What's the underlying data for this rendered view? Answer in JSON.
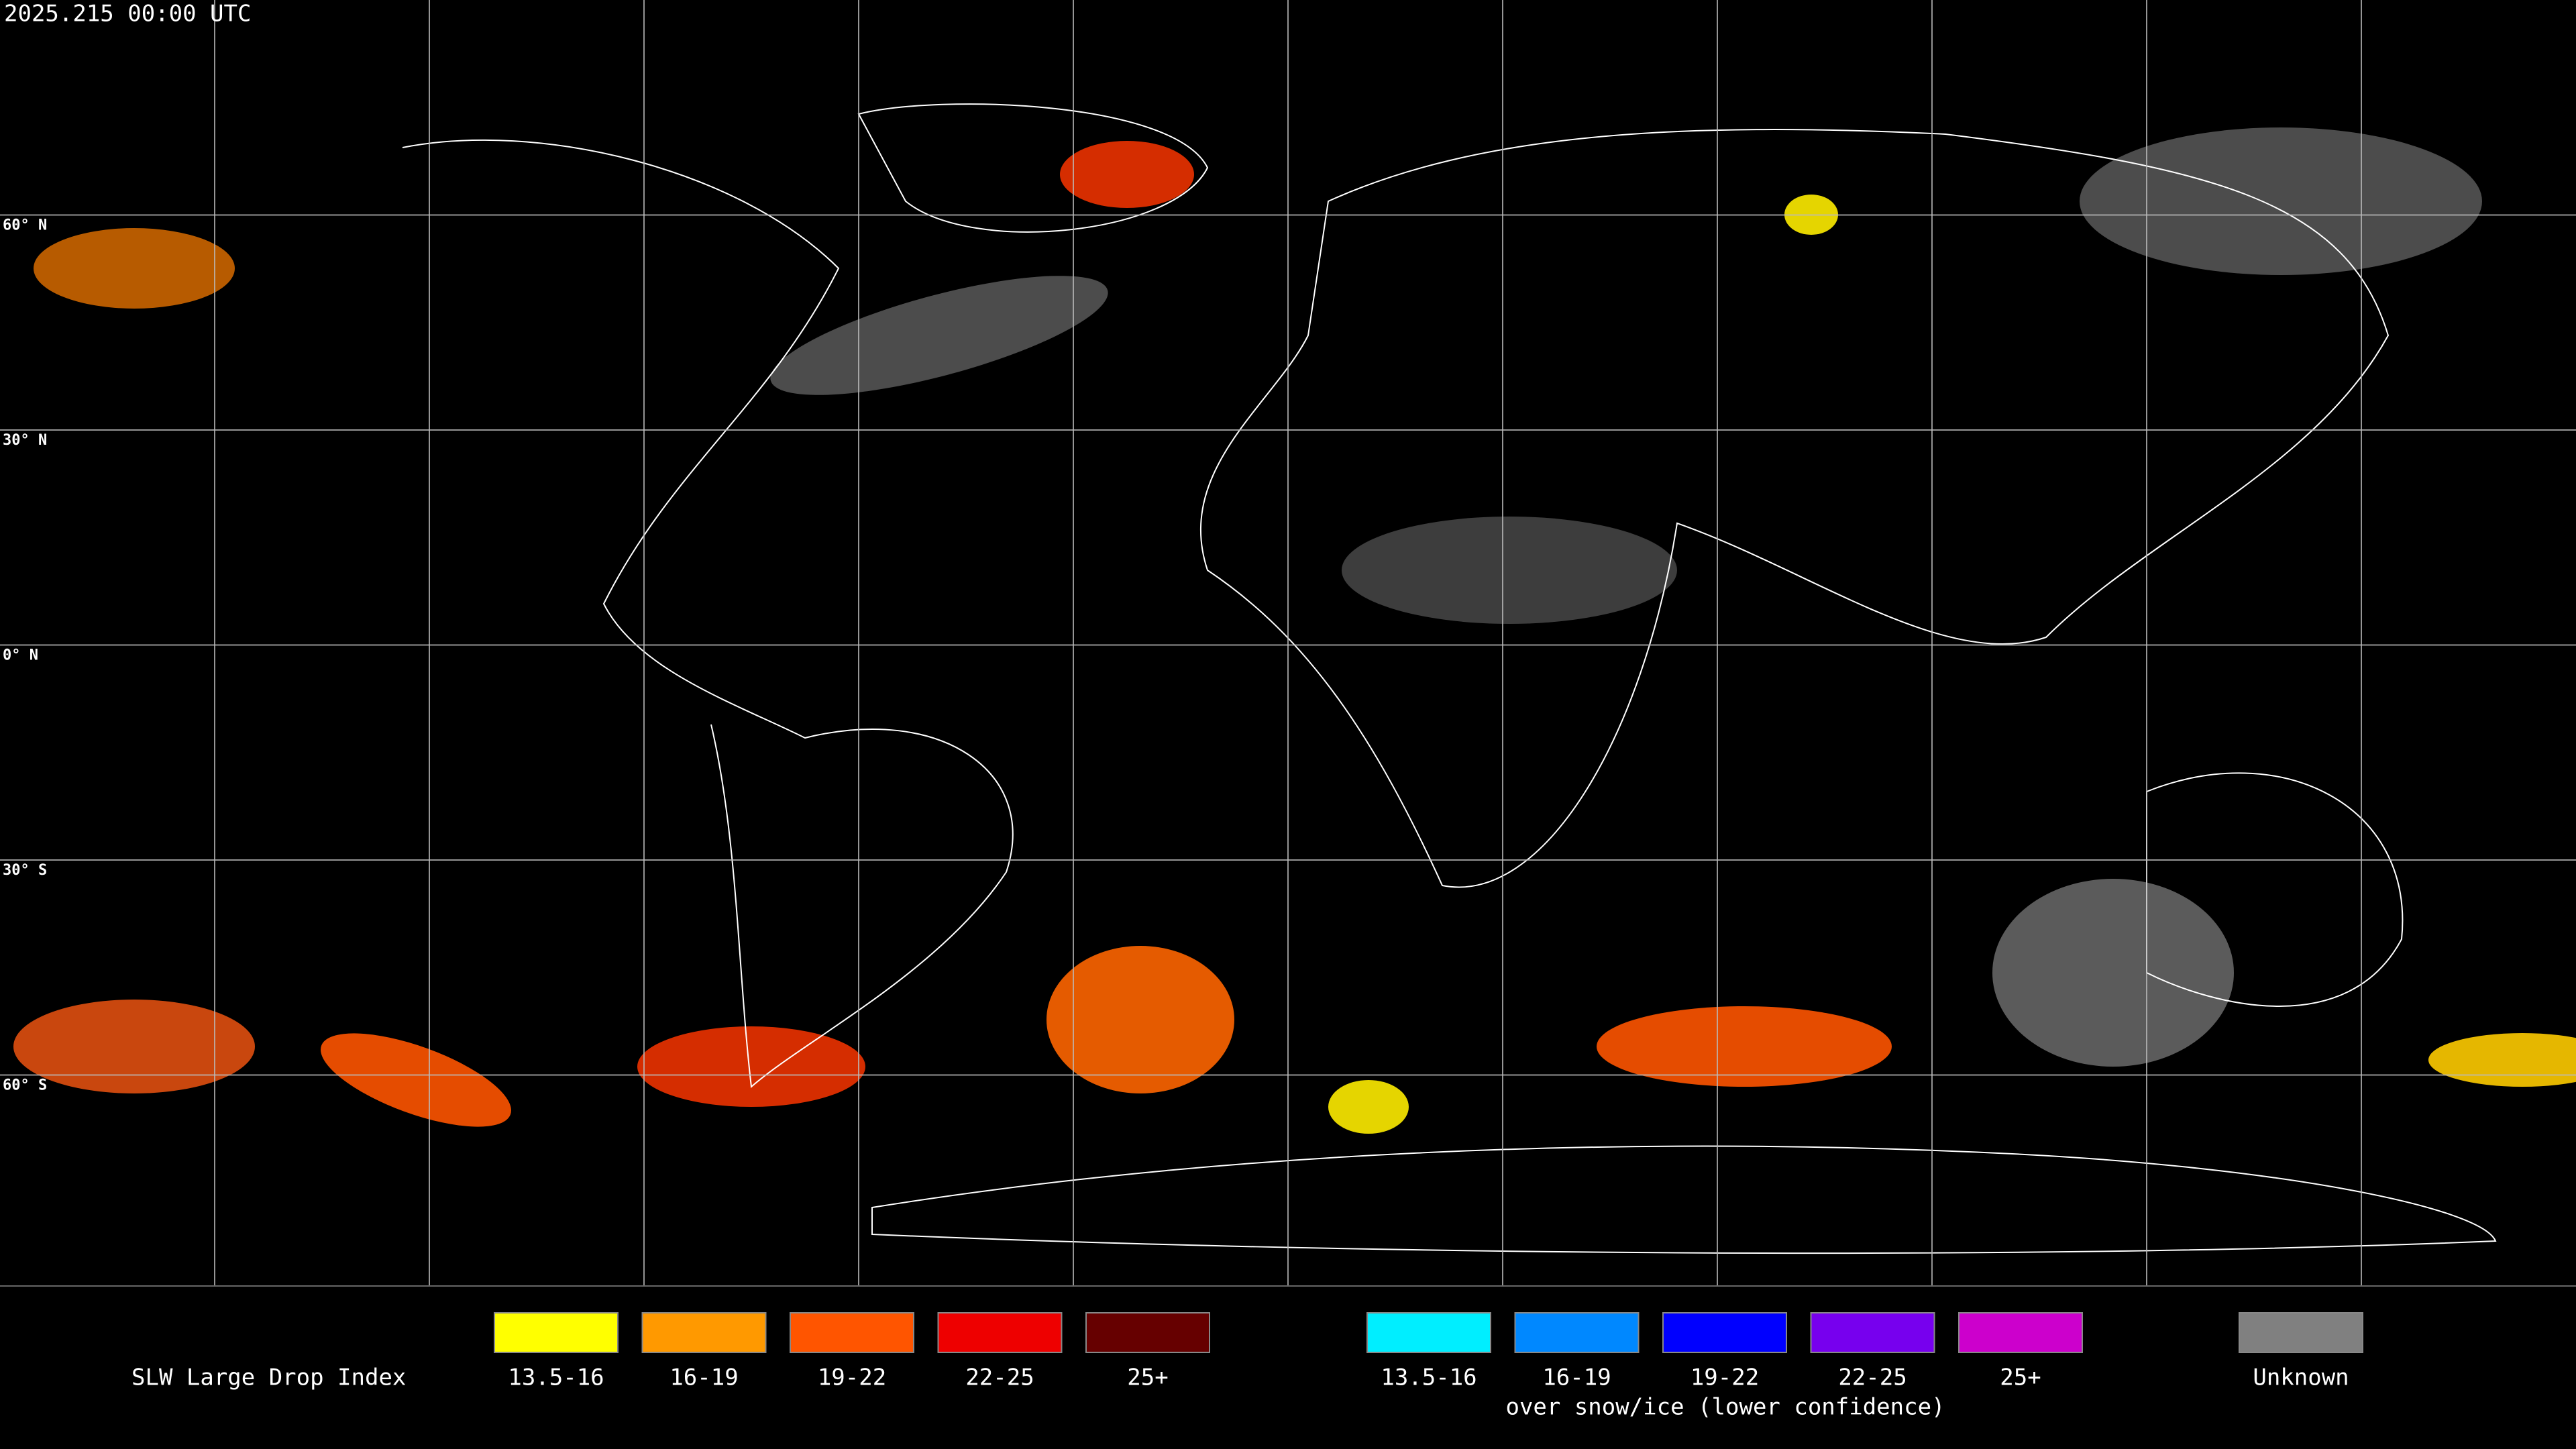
{
  "header": {
    "title": "2025.215 00:00 UTC"
  },
  "map": {
    "latitude_labels": [
      "60° N",
      "30° N",
      "0° N",
      "30° S",
      "60° S"
    ]
  },
  "legend": {
    "title": "SLW Large Drop Index",
    "items": [
      {
        "label": "13.5-16",
        "color": "#ffff00"
      },
      {
        "label": "16-19",
        "color": "#ff9900"
      },
      {
        "label": "19-22",
        "color": "#ff5500"
      },
      {
        "label": "22-25",
        "color": "#ee0000"
      },
      {
        "label": "25+",
        "color": "#660000"
      }
    ],
    "snow_items": [
      {
        "label": "13.5-16",
        "color": "#00eeff"
      },
      {
        "label": "16-19",
        "color": "#0088ff"
      },
      {
        "label": "19-22",
        "color": "#0000ff"
      },
      {
        "label": "22-25",
        "color": "#7700ee"
      },
      {
        "label": "25+",
        "color": "#cc00cc"
      }
    ],
    "snow_caption": "over snow/ice (lower confidence)",
    "unknown": {
      "label": "Unknown",
      "color": "#808080"
    }
  }
}
